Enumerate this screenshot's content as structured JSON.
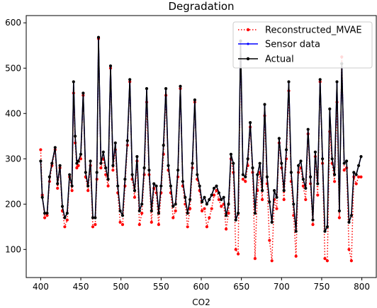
{
  "chart_data": {
    "type": "line",
    "title": "Degradation",
    "xlabel": "CO2",
    "ylabel": "",
    "xlim": [
      382,
      818
    ],
    "ylim": [
      38,
      616
    ],
    "xticks": [
      400,
      450,
      500,
      550,
      600,
      650,
      700,
      750,
      800
    ],
    "yticks": [
      100,
      200,
      300,
      400,
      500,
      600
    ],
    "legend_position": "top-right",
    "series": [
      {
        "name": "Reconstructed_MVAE",
        "color": "#ff0000",
        "line": "dotted",
        "marker": "circle",
        "x": [
          400,
          402,
          405,
          408,
          411,
          414,
          418,
          421,
          424,
          427,
          430,
          433,
          436,
          439,
          441,
          443,
          445,
          447,
          450,
          453,
          456,
          459,
          462,
          465,
          468,
          470,
          472,
          475,
          478,
          481,
          484,
          487,
          490,
          493,
          496,
          499,
          502,
          505,
          508,
          511,
          514,
          517,
          520,
          523,
          526,
          529,
          532,
          535,
          538,
          541,
          544,
          547,
          550,
          553,
          556,
          559,
          562,
          565,
          568,
          571,
          574,
          577,
          580,
          583,
          586,
          589,
          592,
          595,
          598,
          601,
          604,
          607,
          610,
          613,
          616,
          619,
          622,
          625,
          628,
          631,
          634,
          637,
          640,
          643,
          646,
          649,
          652,
          655,
          658,
          661,
          664,
          667,
          670,
          673,
          676,
          679,
          682,
          685,
          688,
          691,
          694,
          697,
          700,
          703,
          706,
          709,
          712,
          715,
          718,
          721,
          724,
          727,
          730,
          733,
          736,
          739,
          742,
          745,
          748,
          751,
          754,
          757,
          760,
          763,
          766,
          769,
          772,
          775,
          778,
          781,
          784,
          787,
          790,
          793,
          796,
          799
        ],
        "y": [
          320,
          220,
          170,
          175,
          250,
          285,
          320,
          235,
          280,
          185,
          150,
          165,
          260,
          230,
          445,
          335,
          280,
          285,
          300,
          440,
          260,
          230,
          285,
          150,
          155,
          255,
          565,
          280,
          300,
          265,
          240,
          500,
          275,
          320,
          225,
          160,
          155,
          240,
          330,
          470,
          255,
          215,
          295,
          155,
          180,
          265,
          425,
          265,
          160,
          235,
          225,
          155,
          225,
          310,
          440,
          275,
          225,
          170,
          185,
          260,
          455,
          240,
          200,
          150,
          190,
          280,
          425,
          255,
          230,
          185,
          190,
          150,
          170,
          190,
          220,
          230,
          210,
          195,
          200,
          145,
          180,
          300,
          270,
          100,
          90,
          560,
          255,
          250,
          285,
          370,
          270,
          80,
          230,
          270,
          210,
          395,
          245,
          120,
          75,
          210,
          190,
          335,
          280,
          210,
          300,
          450,
          250,
          175,
          85,
          270,
          280,
          240,
          210,
          355,
          245,
          155,
          305,
          220,
          470,
          290,
          80,
          75,
          360,
          290,
          250,
          425,
          170,
          525,
          275,
          280,
          100,
          75,
          260,
          245,
          260,
          260
        ]
      },
      {
        "name": "Sensor data",
        "color": "#0000ff",
        "line": "solid",
        "marker": "point",
        "x": [
          400,
          402,
          405,
          408,
          411,
          414,
          418,
          421,
          424,
          427,
          430,
          433,
          436,
          439,
          441,
          443,
          445,
          447,
          450,
          453,
          456,
          459,
          462,
          465,
          468,
          470,
          472,
          475,
          478,
          481,
          484,
          487,
          490,
          493,
          496,
          499,
          502,
          505,
          508,
          511,
          514,
          517,
          520,
          523,
          526,
          529,
          532,
          535,
          538,
          541,
          544,
          547,
          550,
          553,
          556,
          559,
          562,
          565,
          568,
          571,
          574,
          577,
          580,
          583,
          586,
          589,
          592,
          595,
          598,
          601,
          604,
          607,
          610,
          613,
          616,
          619,
          622,
          625,
          628,
          631,
          634,
          637,
          640,
          643,
          646,
          649,
          652,
          655,
          658,
          661,
          664,
          667,
          670,
          673,
          676,
          679,
          682,
          685,
          688,
          691,
          694,
          697,
          700,
          703,
          706,
          709,
          712,
          715,
          718,
          721,
          724,
          727,
          730,
          733,
          736,
          739,
          742,
          745,
          748,
          751,
          754,
          757,
          760,
          763,
          766,
          769,
          772,
          775,
          778,
          781,
          784,
          787,
          790,
          793,
          796,
          799
        ],
        "y": [
          295,
          215,
          180,
          180,
          260,
          290,
          325,
          245,
          285,
          195,
          170,
          180,
          265,
          240,
          470,
          350,
          290,
          295,
          310,
          445,
          270,
          240,
          295,
          170,
          170,
          270,
          568,
          290,
          315,
          280,
          255,
          505,
          285,
          335,
          240,
          185,
          175,
          255,
          340,
          475,
          265,
          230,
          305,
          185,
          200,
          280,
          455,
          275,
          185,
          245,
          240,
          180,
          240,
          330,
          455,
          285,
          240,
          195,
          200,
          275,
          460,
          250,
          215,
          180,
          210,
          290,
          430,
          265,
          240,
          205,
          215,
          200,
          210,
          220,
          235,
          240,
          225,
          210,
          215,
          175,
          200,
          310,
          290,
          165,
          180,
          560,
          265,
          260,
          300,
          380,
          280,
          180,
          265,
          290,
          230,
          420,
          260,
          205,
          160,
          230,
          215,
          345,
          290,
          230,
          320,
          470,
          270,
          200,
          140,
          285,
          295,
          255,
          235,
          365,
          260,
          165,
          315,
          245,
          475,
          300,
          140,
          150,
          410,
          300,
          265,
          470,
          185,
          510,
          290,
          295,
          160,
          175,
          270,
          265,
          285,
          305
        ]
      },
      {
        "name": "Actual",
        "color": "#000000",
        "line": "solid",
        "marker": "circle",
        "x": [
          400,
          402,
          405,
          408,
          411,
          414,
          418,
          421,
          424,
          427,
          430,
          433,
          436,
          439,
          441,
          443,
          445,
          447,
          450,
          453,
          456,
          459,
          462,
          465,
          468,
          470,
          472,
          475,
          478,
          481,
          484,
          487,
          490,
          493,
          496,
          499,
          502,
          505,
          508,
          511,
          514,
          517,
          520,
          523,
          526,
          529,
          532,
          535,
          538,
          541,
          544,
          547,
          550,
          553,
          556,
          559,
          562,
          565,
          568,
          571,
          574,
          577,
          580,
          583,
          586,
          589,
          592,
          595,
          598,
          601,
          604,
          607,
          610,
          613,
          616,
          619,
          622,
          625,
          628,
          631,
          634,
          637,
          640,
          643,
          646,
          649,
          652,
          655,
          658,
          661,
          664,
          667,
          670,
          673,
          676,
          679,
          682,
          685,
          688,
          691,
          694,
          697,
          700,
          703,
          706,
          709,
          712,
          715,
          718,
          721,
          724,
          727,
          730,
          733,
          736,
          739,
          742,
          745,
          748,
          751,
          754,
          757,
          760,
          763,
          766,
          769,
          772,
          775,
          778,
          781,
          784,
          787,
          790,
          793,
          796,
          799
        ],
        "y": [
          295,
          215,
          180,
          180,
          260,
          290,
          325,
          245,
          285,
          195,
          170,
          180,
          265,
          240,
          470,
          350,
          290,
          295,
          310,
          445,
          270,
          240,
          295,
          170,
          170,
          270,
          568,
          290,
          315,
          280,
          255,
          505,
          285,
          335,
          240,
          185,
          175,
          255,
          340,
          475,
          265,
          230,
          305,
          185,
          200,
          280,
          455,
          275,
          185,
          245,
          240,
          180,
          240,
          330,
          455,
          285,
          240,
          195,
          200,
          275,
          460,
          250,
          215,
          180,
          210,
          290,
          430,
          265,
          240,
          205,
          215,
          200,
          210,
          220,
          235,
          240,
          225,
          210,
          215,
          175,
          200,
          310,
          290,
          165,
          180,
          560,
          265,
          260,
          300,
          380,
          280,
          180,
          265,
          290,
          230,
          420,
          260,
          205,
          160,
          230,
          215,
          345,
          290,
          230,
          320,
          470,
          270,
          200,
          140,
          285,
          295,
          255,
          235,
          365,
          260,
          165,
          315,
          245,
          475,
          300,
          140,
          150,
          410,
          300,
          265,
          470,
          185,
          510,
          290,
          295,
          160,
          175,
          270,
          265,
          285,
          305
        ]
      }
    ]
  }
}
